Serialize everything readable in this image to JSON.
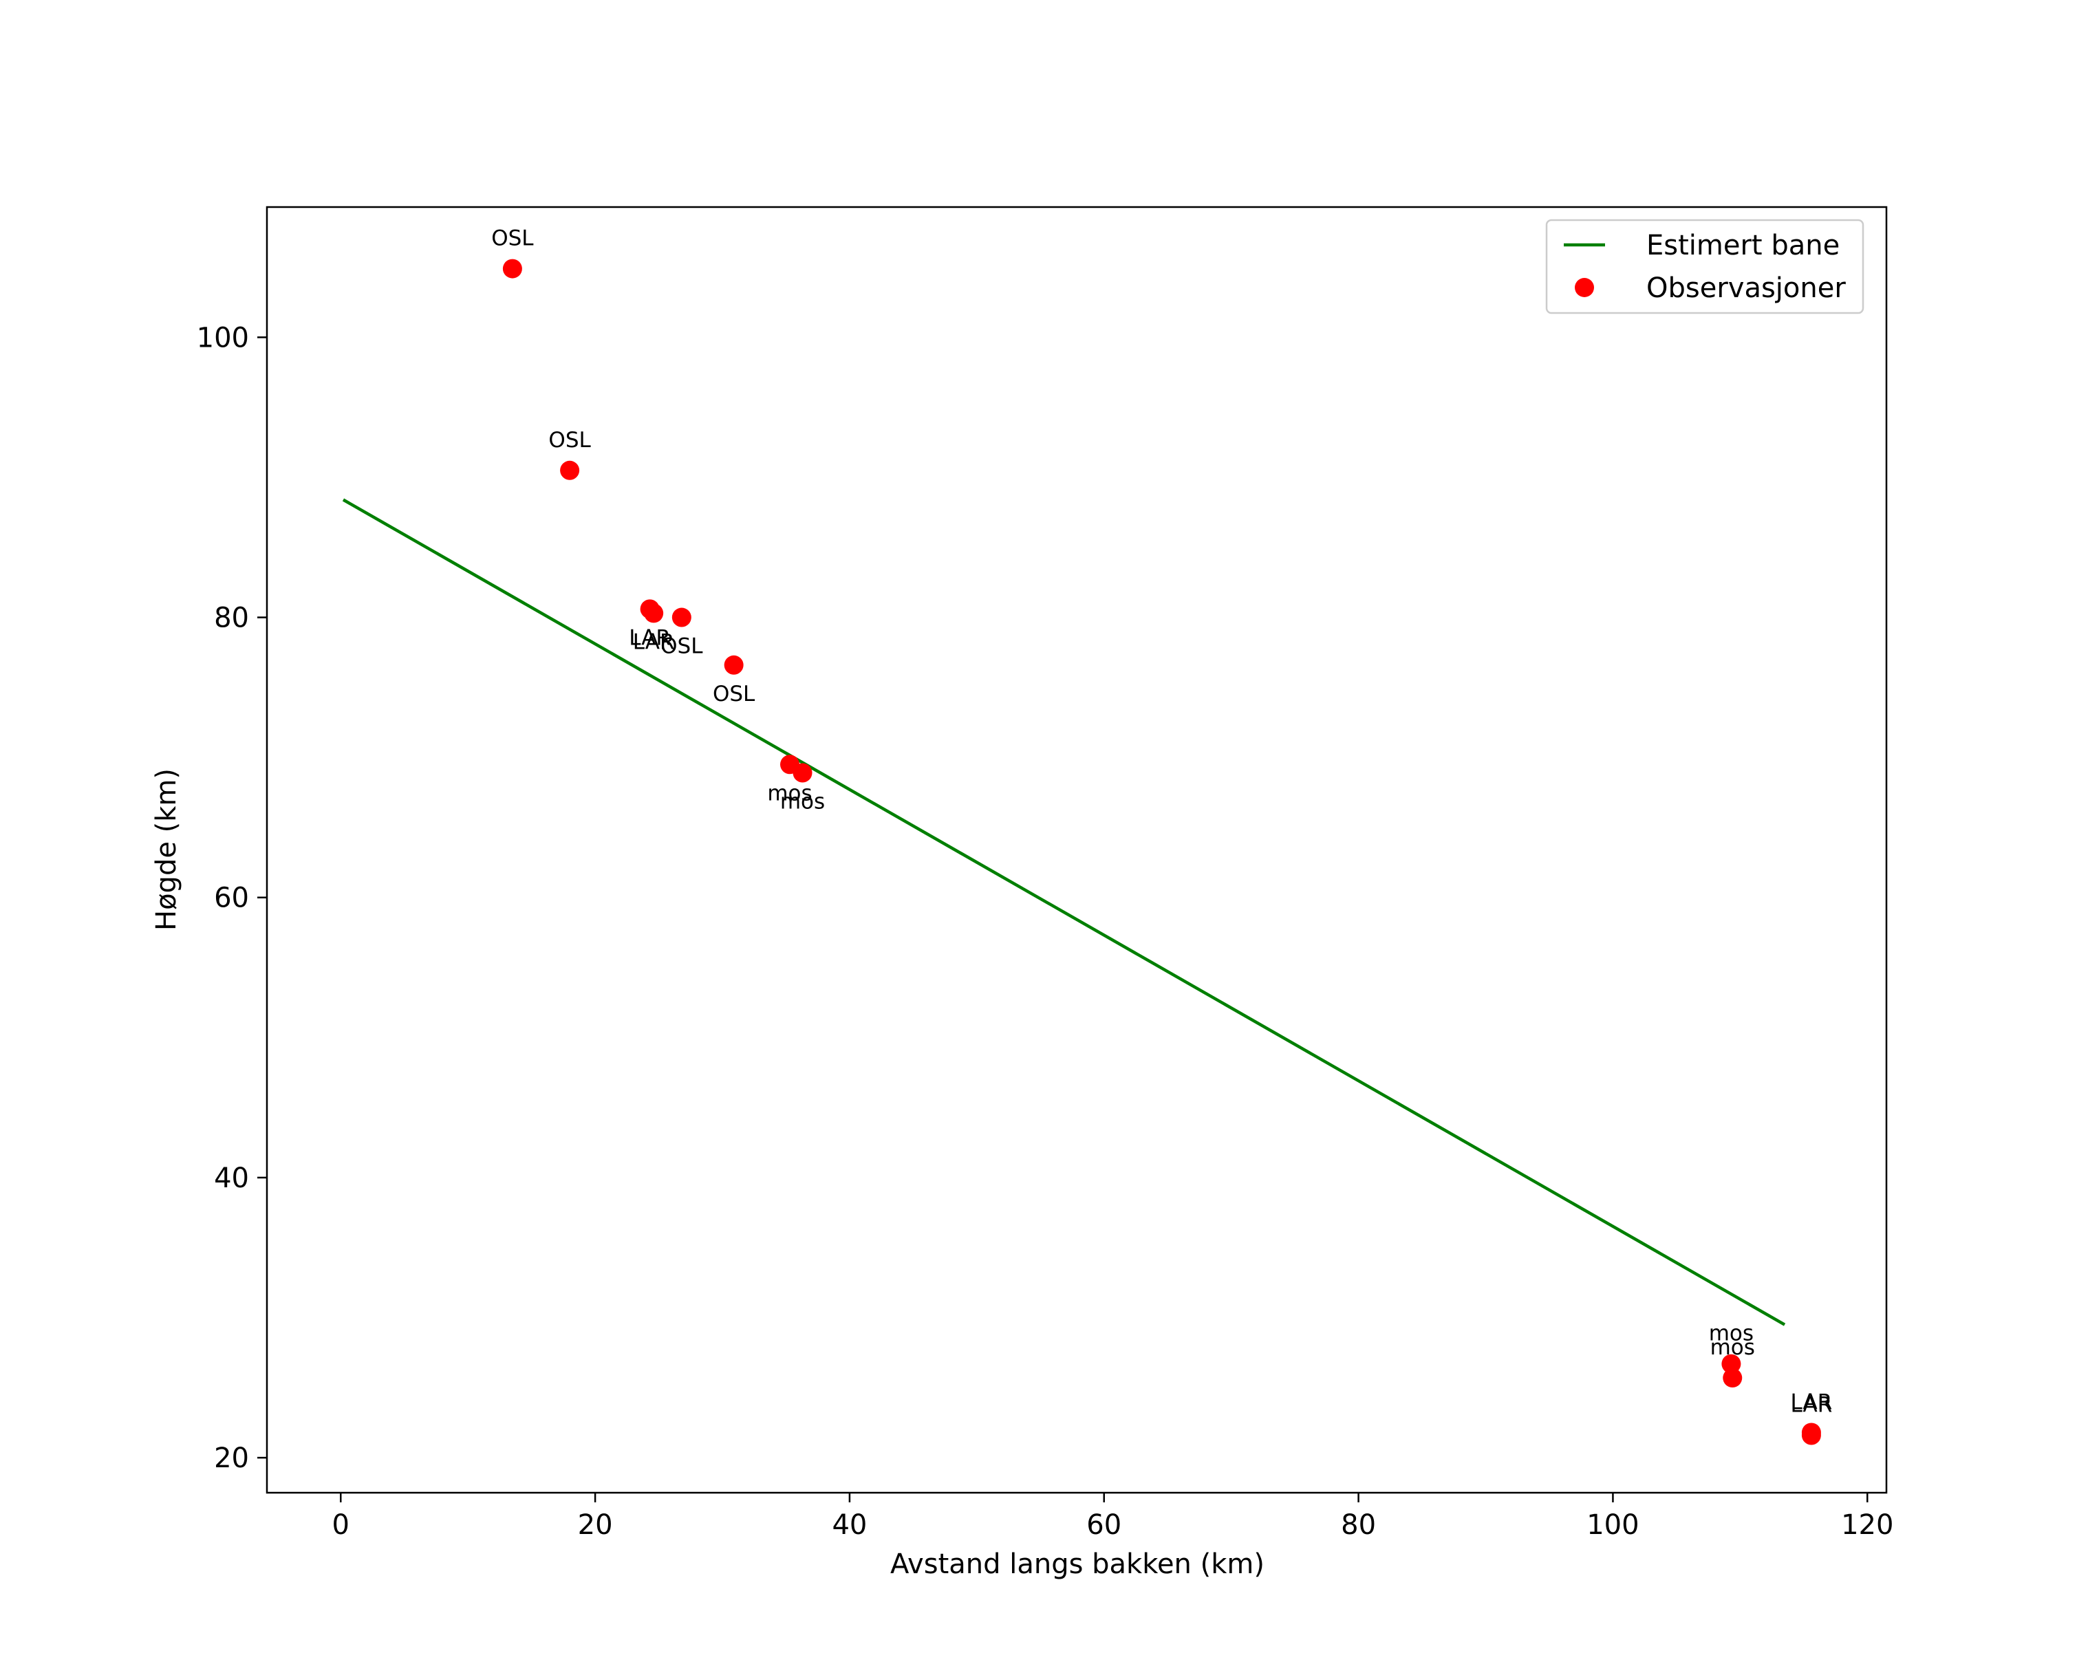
{
  "chart_data": {
    "type": "scatter",
    "title": "",
    "xlabel": "Avstand langs bakken (km)",
    "ylabel": "Høgde (km)",
    "xlim": [
      -5.8,
      121.5
    ],
    "ylim": [
      17.5,
      109.3
    ],
    "xticks": [
      0,
      20,
      40,
      60,
      80,
      100,
      120
    ],
    "yticks": [
      20,
      40,
      60,
      80,
      100
    ],
    "grid": false,
    "legend_position": "top-right",
    "colors": {
      "line": "#007f00",
      "points": "#ff0000",
      "axis": "#000000"
    },
    "series": [
      {
        "name": "Estimert bane",
        "kind": "line",
        "x": [
          0.2,
          113.5
        ],
        "y": [
          88.4,
          29.5
        ]
      },
      {
        "name": "Observasjoner",
        "kind": "scatter",
        "points": [
          {
            "x": 13.5,
            "y": 104.9,
            "label": "OSL",
            "label_pos": "above"
          },
          {
            "x": 18.0,
            "y": 90.5,
            "label": "OSL",
            "label_pos": "above"
          },
          {
            "x": 24.3,
            "y": 80.6,
            "label": "LAR",
            "label_pos": "below"
          },
          {
            "x": 24.6,
            "y": 80.3,
            "label": "LAR",
            "label_pos": "below"
          },
          {
            "x": 26.8,
            "y": 80.0,
            "label": "OSL",
            "label_pos": "below"
          },
          {
            "x": 30.9,
            "y": 76.6,
            "label": "OSL",
            "label_pos": "below"
          },
          {
            "x": 35.3,
            "y": 69.5,
            "label": "mos",
            "label_pos": "below"
          },
          {
            "x": 36.3,
            "y": 68.9,
            "label": "mos",
            "label_pos": "below"
          },
          {
            "x": 109.3,
            "y": 26.7,
            "label": "mos",
            "label_pos": "above"
          },
          {
            "x": 109.4,
            "y": 25.7,
            "label": "mos",
            "label_pos": "above"
          },
          {
            "x": 115.6,
            "y": 21.8,
            "label": "LAR",
            "label_pos": "above"
          },
          {
            "x": 115.6,
            "y": 21.6,
            "label": "LAR",
            "label_pos": "above"
          }
        ]
      }
    ]
  }
}
